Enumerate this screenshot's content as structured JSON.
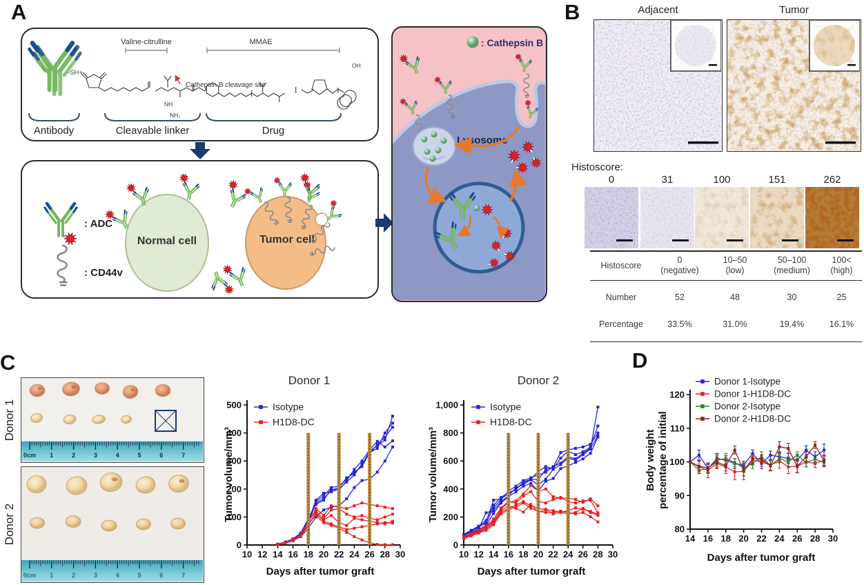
{
  "figure": {
    "panel_labels": {
      "a": "A",
      "b": "B",
      "c": "C",
      "d": "D"
    }
  },
  "panel_a": {
    "valine_citrulline_label": "Valine-citrulline",
    "mmae_label": "MMAE",
    "sh_label": "-SH+",
    "cleavage_site_label": "Cathepsin B cleavage site",
    "atom_labels": {
      "nh": "NH",
      "nh2": "NH₂",
      "oh": "OH"
    },
    "antibody_label": "Antibody",
    "linker_label": "Cleavable linker",
    "drug_label": "Drug",
    "adc_legend_label": ": ADC",
    "cd44v_legend_label": ": CD44v",
    "normal_cell_label": "Normal cell",
    "tumor_cell_label": "Tumor cell",
    "cathepsin_b_legend_label": ": Cathepsin B",
    "lysosome_label": "Lysosome",
    "colors": {
      "antibody_green": "#76b860",
      "antibody_tip_blue": "#1d4f8c",
      "drug_red": "#da2128",
      "normal_cell_fill": "#e0ebd5",
      "tumor_cell_fill": "#f4bd87",
      "cell_blue": "#8e98c5",
      "extracellular_pink": "#f5c2c8",
      "arrow_orange": "#e8782c",
      "flow_arrow_navy": "#1e3a6e"
    }
  },
  "panel_b": {
    "adjacent_title": "Adjacent",
    "tumor_title": "Tumor",
    "histoscore_heading": "Histoscore:",
    "example_scores": [
      "0",
      "31",
      "100",
      "151",
      "262"
    ],
    "table": {
      "row_headers": [
        "Histoscore",
        "Number",
        "Percentage"
      ],
      "categories": [
        {
          "range": "0",
          "level": "(negative)"
        },
        {
          "range": "10–50",
          "level": "(low)"
        },
        {
          "range": "50–100",
          "level": "(medium)"
        },
        {
          "range": "100<",
          "level": "(high)"
        }
      ],
      "numbers": [
        "52",
        "48",
        "30",
        "25"
      ],
      "percentages": [
        "33.5%",
        "31.0%",
        "19.4%",
        "16.1%"
      ]
    }
  },
  "panel_c": {
    "donor1_label": "Donor 1",
    "donor2_label": "Donor 2",
    "ruler_labels": [
      "0cm",
      "1",
      "2",
      "3",
      "4",
      "5",
      "6",
      "7"
    ]
  },
  "chart_data": [
    {
      "id": "d1",
      "type": "line",
      "title": "Donor 1",
      "xlabel": "Days after tumor graft",
      "ylabel": "Tumor volume/mm³",
      "xlim": [
        10,
        30
      ],
      "ylim": [
        0,
        500
      ],
      "xticks": [
        10,
        12,
        14,
        16,
        18,
        20,
        22,
        24,
        26,
        28,
        30
      ],
      "yticks": [
        0,
        100,
        200,
        300,
        400,
        500
      ],
      "ytick_labels": [
        "0",
        "100",
        "200",
        "300",
        "400",
        "500"
      ],
      "treatment_days": [
        18,
        22,
        26
      ],
      "treatment_top": 400,
      "treatment_color": "#bc8a42",
      "legend": [
        {
          "label": "Isotype",
          "color": "#2525d4"
        },
        {
          "label": "H1D8-DC",
          "color": "#e32222"
        }
      ],
      "days": [
        14,
        15,
        16,
        17,
        18,
        19,
        20,
        21,
        22,
        23,
        24,
        25,
        26,
        27,
        28,
        29
      ],
      "series": [
        {
          "name": "Isotype-1",
          "color": "#2525d4",
          "y": [
            2,
            8,
            18,
            35,
            80,
            150,
            165,
            195,
            205,
            240,
            255,
            285,
            335,
            355,
            375,
            460
          ]
        },
        {
          "name": "Isotype-2",
          "color": "#2525d4",
          "y": [
            3,
            10,
            20,
            40,
            90,
            155,
            175,
            205,
            210,
            235,
            260,
            280,
            330,
            345,
            400,
            435
          ]
        },
        {
          "name": "Isotype-3",
          "color": "#2525d4",
          "y": [
            2,
            9,
            19,
            38,
            85,
            160,
            185,
            190,
            200,
            225,
            250,
            290,
            325,
            360,
            385,
            420
          ]
        },
        {
          "name": "Isotype-4",
          "color": "#2525d4",
          "y": [
            3,
            11,
            22,
            42,
            95,
            145,
            160,
            200,
            195,
            230,
            270,
            300,
            340,
            370,
            350,
            372
          ]
        },
        {
          "name": "Isotype-5",
          "color": "#2525d4",
          "y": [
            2,
            7,
            15,
            30,
            60,
            100,
            125,
            135,
            140,
            165,
            205,
            230,
            235,
            260,
            300,
            350
          ]
        },
        {
          "name": "H1D8-DC-1",
          "color": "#e32222",
          "y": [
            2,
            8,
            18,
            35,
            80,
            130,
            105,
            140,
            135,
            130,
            140,
            150,
            145,
            140,
            135,
            130
          ]
        },
        {
          "name": "H1D8-DC-2",
          "color": "#e32222",
          "y": [
            3,
            9,
            19,
            36,
            85,
            120,
            95,
            125,
            130,
            110,
            100,
            105,
            95,
            90,
            100,
            110
          ]
        },
        {
          "name": "H1D8-DC-3",
          "color": "#e32222",
          "y": [
            2,
            8,
            17,
            33,
            75,
            110,
            90,
            105,
            80,
            70,
            95,
            90,
            85,
            80,
            75,
            85
          ]
        },
        {
          "name": "H1D8-DC-4",
          "color": "#e32222",
          "y": [
            2,
            7,
            16,
            32,
            70,
            115,
            85,
            75,
            65,
            55,
            60,
            65,
            70,
            75,
            80,
            78
          ]
        },
        {
          "name": "H1D8-DC-5",
          "color": "#e32222",
          "y": [
            2,
            8,
            17,
            34,
            78,
            105,
            80,
            70,
            60,
            45,
            30,
            18,
            8,
            2,
            1,
            1
          ]
        }
      ]
    },
    {
      "id": "d2",
      "type": "line",
      "title": "Donor 2",
      "xlabel": "Days after tumor graft",
      "ylabel": "Tumor volume/mm³",
      "xlim": [
        10,
        30
      ],
      "ylim": [
        0,
        1000
      ],
      "xticks": [
        10,
        12,
        14,
        16,
        18,
        20,
        22,
        24,
        26,
        28,
        30
      ],
      "yticks": [
        0,
        200,
        400,
        600,
        800,
        1000
      ],
      "ytick_labels": [
        "0",
        "200",
        "400",
        "600",
        "800",
        "1,000"
      ],
      "treatment_days": [
        16,
        20,
        24
      ],
      "treatment_top": 800,
      "treatment_color": "#bc8a42",
      "legend": [
        {
          "label": "Isotype",
          "color": "#2525d4"
        },
        {
          "label": "H1D8-DC",
          "color": "#e32222"
        }
      ],
      "days": [
        10,
        11,
        12,
        13,
        14,
        15,
        16,
        17,
        18,
        19,
        20,
        21,
        22,
        23,
        24,
        25,
        26,
        27,
        28
      ],
      "series": [
        {
          "name": "Isotype-1",
          "color": "#2525d4",
          "y": [
            65,
            95,
            125,
            165,
            320,
            330,
            365,
            400,
            445,
            465,
            430,
            470,
            540,
            575,
            620,
            605,
            645,
            685,
            985
          ]
        },
        {
          "name": "Isotype-2",
          "color": "#2525d4",
          "y": [
            75,
            105,
            135,
            175,
            285,
            340,
            375,
            395,
            450,
            470,
            525,
            560,
            545,
            620,
            670,
            645,
            665,
            700,
            850
          ]
        },
        {
          "name": "Isotype-3",
          "color": "#2525d4",
          "y": [
            55,
            85,
            115,
            230,
            245,
            310,
            350,
            410,
            430,
            470,
            465,
            540,
            555,
            660,
            680,
            690,
            700,
            720,
            800
          ]
        },
        {
          "name": "Isotype-4",
          "color": "#2525d4",
          "y": [
            70,
            100,
            130,
            155,
            265,
            325,
            385,
            420,
            460,
            480,
            500,
            520,
            560,
            585,
            630,
            615,
            655,
            690,
            780
          ]
        },
        {
          "name": "Isotype-5",
          "color": "#2525d4",
          "y": [
            50,
            80,
            110,
            140,
            225,
            300,
            345,
            380,
            420,
            440,
            385,
            455,
            475,
            545,
            565,
            590,
            615,
            655,
            770
          ]
        },
        {
          "name": "H1D8-DC-1",
          "color": "#e32222",
          "y": [
            55,
            75,
            95,
            125,
            165,
            255,
            305,
            315,
            365,
            425,
            385,
            400,
            345,
            335,
            335,
            325,
            305,
            330,
            280
          ]
        },
        {
          "name": "H1D8-DC-2",
          "color": "#e32222",
          "y": [
            60,
            80,
            105,
            135,
            185,
            265,
            310,
            300,
            350,
            380,
            310,
            300,
            325,
            340,
            310,
            300,
            315,
            320,
            230
          ]
        },
        {
          "name": "H1D8-DC-3",
          "color": "#e32222",
          "y": [
            50,
            70,
            90,
            115,
            155,
            235,
            260,
            285,
            310,
            280,
            260,
            255,
            245,
            235,
            245,
            265,
            255,
            240,
            220
          ]
        },
        {
          "name": "H1D8-DC-4",
          "color": "#e32222",
          "y": [
            55,
            72,
            98,
            128,
            172,
            245,
            280,
            262,
            235,
            290,
            232,
            252,
            222,
            232,
            222,
            232,
            262,
            232,
            212
          ]
        },
        {
          "name": "H1D8-DC-5",
          "color": "#e32222",
          "y": [
            45,
            65,
            85,
            105,
            145,
            222,
            252,
            272,
            300,
            262,
            242,
            232,
            232,
            242,
            232,
            222,
            232,
            202,
            165
          ]
        }
      ]
    },
    {
      "id": "bw",
      "type": "line",
      "title": "",
      "xlabel": "Days after tumor graft",
      "ylabel_lines": [
        "Body weight",
        "percentage of initial"
      ],
      "xlim": [
        14,
        30
      ],
      "ylim": [
        80,
        120
      ],
      "xticks": [
        14,
        16,
        18,
        20,
        22,
        24,
        26,
        28,
        30
      ],
      "yticks": [
        80,
        90,
        100,
        110,
        120
      ],
      "ytick_labels": [
        "80",
        "90",
        "100",
        "110",
        "120"
      ],
      "legend": [
        {
          "label": "Donor 1-Isotype",
          "color": "#2525d4"
        },
        {
          "label": "Donor 1-H1D8-DC",
          "color": "#e32222"
        },
        {
          "label": "Donor 2-Isotype",
          "color": "#338033"
        },
        {
          "label": "Donor 2-H1D8-DC",
          "color": "#8b2323"
        }
      ],
      "days": [
        14,
        15,
        16,
        17,
        18,
        19,
        20,
        21,
        22,
        23,
        24,
        25,
        26,
        27,
        28,
        29
      ],
      "series": [
        {
          "name": "Donor 1-Isotype",
          "color": "#2525d4",
          "y": [
            100,
            102,
            98,
            101,
            100.5,
            99.5,
            99,
            102.5,
            99.5,
            102,
            101.5,
            101,
            100.5,
            103.5,
            101.5,
            103.5
          ],
          "err": [
            0,
            1.5,
            1.2,
            1.5,
            1.3,
            1.5,
            1.2,
            1.0,
            1.5,
            1.2,
            1.3,
            1.5,
            1.2,
            1.3,
            1.5,
            1.8
          ]
        },
        {
          "name": "Donor 1-H1D8-DC",
          "color": "#e32222",
          "y": [
            100,
            98.5,
            97.5,
            99.5,
            98.5,
            97,
            97.2,
            100.5,
            100,
            99,
            100.3,
            98.5,
            98.7,
            100,
            99.5,
            100.5
          ],
          "err": [
            0,
            1.8,
            2.2,
            1.5,
            2.0,
            2.3,
            2.5,
            1.5,
            1.3,
            1.5,
            2.2,
            2.0,
            2.0,
            1.5,
            1.2,
            1.5
          ]
        },
        {
          "name": "Donor 2-Isotype",
          "color": "#338033",
          "y": [
            100,
            97.5,
            98,
            100.5,
            101,
            99.8,
            98.2,
            99.5,
            101.5,
            98.9,
            101,
            100,
            102,
            99.8,
            100.8,
            99.8
          ],
          "err": [
            0,
            1.0,
            1.5,
            1.8,
            1.5,
            1.2,
            1.3,
            1.5,
            1.5,
            1.5,
            1.2,
            1.5,
            1.0,
            1.3,
            1.2,
            1.3
          ]
        },
        {
          "name": "Donor 2-H1D8-DC",
          "color": "#8b2323",
          "y": [
            100,
            98.7,
            98.2,
            100,
            98.8,
            103.5,
            97.3,
            101,
            100.8,
            98.8,
            104.5,
            104,
            98.6,
            101.5,
            105,
            100.3
          ],
          "err": [
            0,
            1.5,
            1.3,
            1.8,
            1.5,
            1.2,
            1.5,
            1.5,
            1.3,
            1.5,
            1.5,
            1.5,
            1.8,
            1.5,
            1.0,
            1.5
          ]
        }
      ]
    }
  ]
}
